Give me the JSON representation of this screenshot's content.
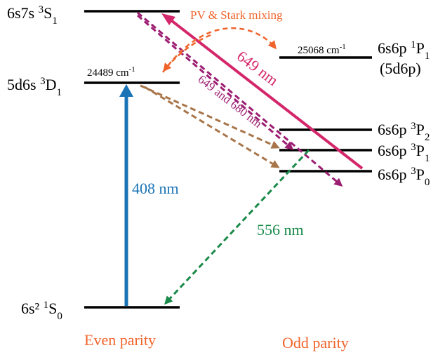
{
  "levels": {
    "s7s": {
      "main": "6s7s ",
      "sup": "3",
      "term": "S",
      "sub": "1"
    },
    "d6s": {
      "main": "5d6s ",
      "sup": "3",
      "term": "D",
      "sub": "1",
      "energy_num": "24489 cm",
      "energy_sup": "-1"
    },
    "p1P1": {
      "main": "6s6p ",
      "sup": "1",
      "term": "P",
      "sub": "1",
      "extra": "(5d6p)",
      "energy_num": "25068 cm",
      "energy_sup": "-1"
    },
    "p3P2": {
      "main": "6s6p ",
      "sup": "3",
      "term": "P",
      "sub": "2"
    },
    "p3P1": {
      "main": "6s6p ",
      "sup": "3",
      "term": "P",
      "sub": "1"
    },
    "p3P0": {
      "main": "6s6p ",
      "sup": "3",
      "term": "P",
      "sub": "0"
    },
    "ground": {
      "main": "6s² ",
      "sup": "1",
      "term": "S",
      "sub": "0"
    }
  },
  "transitions": {
    "blue": "408 nm",
    "green": "556 nm",
    "red": "649 nm",
    "purple": "649 and 680 nm",
    "mixing": "PV & Stark mixing"
  },
  "parity": {
    "even": "Even parity",
    "odd": "Odd parity"
  },
  "colors": {
    "blue": "#1a73b5",
    "green": "#1a8a4a",
    "red": "#d4266a",
    "purple": "#9c1e72",
    "brown": "#a8754a",
    "orange": "#f0642c",
    "level": "#000000"
  }
}
